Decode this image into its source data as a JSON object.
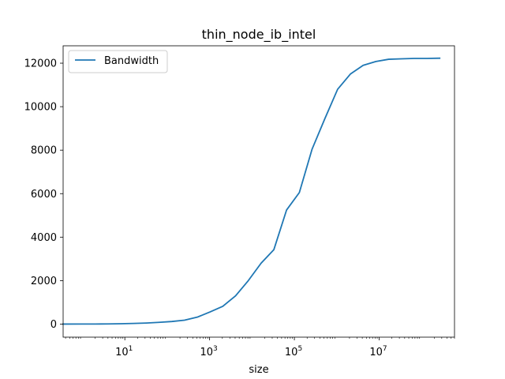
{
  "chart_data": {
    "type": "line",
    "title": "thin_node_ib_intel",
    "xlabel": "size",
    "ylabel": "",
    "xscale": "log",
    "xlim": [
      0.35,
      600000000
    ],
    "ylim": [
      -600,
      12800
    ],
    "grid": false,
    "legend_placement": "top-left",
    "x_ticks": [
      10,
      1000,
      100000,
      10000000
    ],
    "x_tick_labels": [
      {
        "base": "10",
        "exp": "1"
      },
      {
        "base": "10",
        "exp": "3"
      },
      {
        "base": "10",
        "exp": "5"
      },
      {
        "base": "10",
        "exp": "7"
      }
    ],
    "y_ticks": [
      0,
      2000,
      4000,
      6000,
      8000,
      10000,
      12000
    ],
    "y_tick_labels": [
      "0",
      "2000",
      "4000",
      "6000",
      "8000",
      "10000",
      "12000"
    ],
    "series": [
      {
        "name": "Bandwidth",
        "color": "#1f77b4",
        "x": [
          0.35,
          1,
          2,
          4,
          8,
          16,
          32,
          64,
          128,
          256,
          512,
          1024,
          2048,
          4096,
          8192,
          16384,
          32768,
          65536,
          131072,
          262144,
          524288,
          1048576,
          2097152,
          4194304,
          8388608,
          16777216,
          33554432,
          67108864,
          134217728,
          268435456
        ],
        "y": [
          2,
          3,
          5,
          9,
          17,
          30,
          50,
          80,
          120,
          180,
          320,
          560,
          820,
          1300,
          2000,
          2800,
          3420,
          5250,
          6050,
          8050,
          9450,
          10800,
          11500,
          11900,
          12080,
          12180,
          12200,
          12220,
          12220,
          12230
        ]
      }
    ]
  }
}
